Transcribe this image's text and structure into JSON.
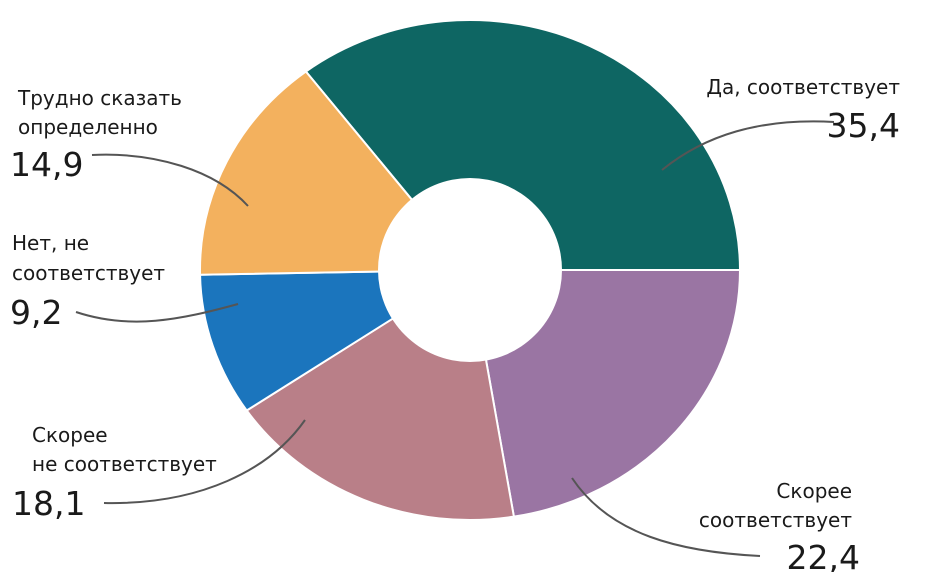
{
  "chart_data": {
    "type": "pie",
    "donut": true,
    "categories": [
      "Да, соответствует",
      "Скорее соответствует",
      "Скорее не соответствует",
      "Нет, не соответствует",
      "Трудно сказать определенно"
    ],
    "values": [
      35.4,
      22.4,
      18.1,
      9.2,
      14.9
    ],
    "value_labels": [
      "35,4",
      "22,4",
      "18,1",
      "9,2",
      "14,9"
    ],
    "colors": [
      "#0e6663",
      "#9a75a3",
      "#b97f88",
      "#1b75bd",
      "#f3b15e"
    ],
    "label_lines": [
      [
        "Да, соответствует"
      ],
      [
        "Скорее",
        "соответствует"
      ],
      [
        "Скорее",
        "не соответствует"
      ],
      [
        "Нет, не",
        "соответствует"
      ],
      [
        "Трудно сказать",
        "определенно"
      ]
    ],
    "legend": "none",
    "title": ""
  }
}
